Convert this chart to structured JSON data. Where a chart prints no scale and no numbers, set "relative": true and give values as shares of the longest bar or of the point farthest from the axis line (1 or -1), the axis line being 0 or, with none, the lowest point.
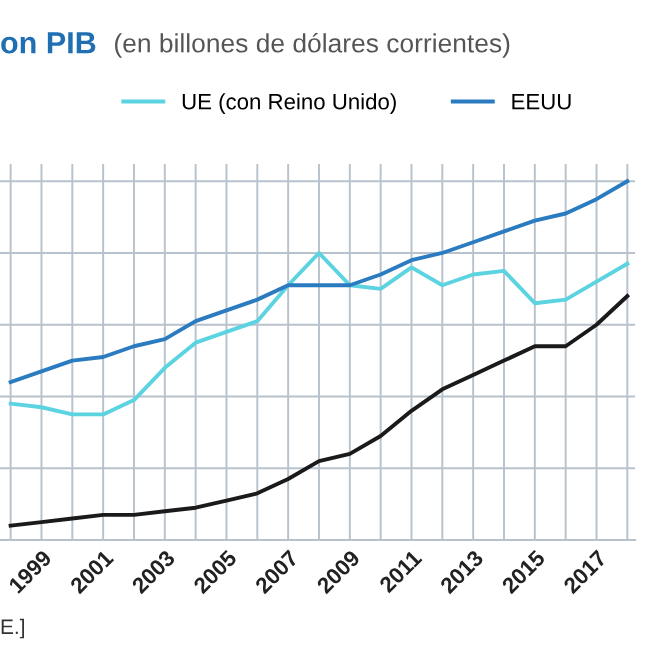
{
  "chart_data": {
    "type": "line",
    "title": "on PIB",
    "subtitle": "(en billones de dólares corrientes)",
    "relative": true,
    "categories": [
      null,
      "1999",
      null,
      "2001",
      null,
      "2003",
      null,
      "2005",
      null,
      "2007",
      null,
      "2009",
      null,
      "2011",
      null,
      "2013",
      null,
      "2015",
      null,
      "2017",
      null
    ],
    "series": [
      {
        "name": "UE (con Reino Unido)",
        "color": "#5bd3e0",
        "values": [
          0.38,
          0.37,
          0.35,
          0.35,
          0.39,
          0.48,
          0.55,
          0.58,
          0.61,
          0.71,
          0.8,
          0.71,
          0.7,
          0.76,
          0.71,
          0.74,
          0.75,
          0.66,
          0.67,
          0.72,
          0.77
        ]
      },
      {
        "name": "EEUU",
        "color": "#2a7bc0",
        "values": [
          0.44,
          0.47,
          0.5,
          0.51,
          0.54,
          0.56,
          0.61,
          0.64,
          0.67,
          0.71,
          0.71,
          0.71,
          0.74,
          0.78,
          0.8,
          0.83,
          0.86,
          0.89,
          0.91,
          0.95,
          1
        ]
      },
      {
        "color": "#1a1a1a",
        "values": [
          0.04,
          0.05,
          0.06,
          0.07,
          0.07,
          0.08,
          0.09,
          0.11,
          0.13,
          0.17,
          0.22,
          0.24,
          0.29,
          0.36,
          0.42,
          0.46,
          0.5,
          0.54,
          0.54,
          0.6,
          0.68
        ]
      }
    ],
    "annotations": [
      "E.]"
    ],
    "grid": true,
    "legend": "top",
    "marker": "none",
    "line_style": "solid"
  }
}
